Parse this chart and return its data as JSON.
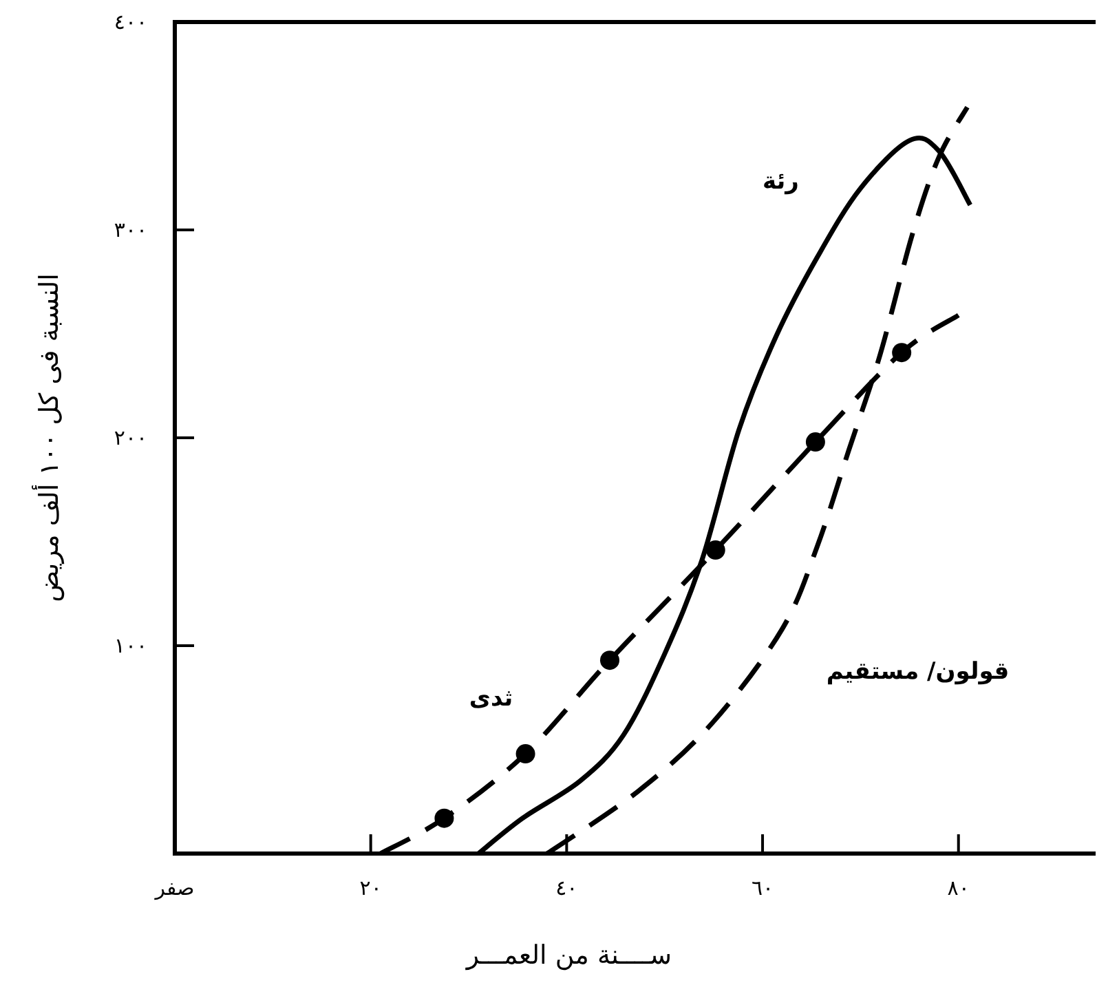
{
  "chart_data": {
    "type": "line",
    "xlabel": "ســــنة من العمـــر",
    "ylabel": "النسبة فى كل ١٠٠ ألف مريض",
    "xlim": [
      0,
      94
    ],
    "ylim": [
      0,
      400
    ],
    "xticks": [
      {
        "value": 0,
        "label": "صفر"
      },
      {
        "value": 20,
        "label": "٢٠"
      },
      {
        "value": 40,
        "label": "٤٠"
      },
      {
        "value": 60,
        "label": "٦٠"
      },
      {
        "value": 80,
        "label": "٨٠"
      }
    ],
    "yticks": [
      {
        "value": 100,
        "label": "١٠٠"
      },
      {
        "value": 200,
        "label": "٢٠٠"
      },
      {
        "value": 300,
        "label": "٣٠٠"
      },
      {
        "value": 400,
        "label": "٤٠٠"
      }
    ],
    "series": [
      {
        "name": "رئة",
        "color": "#000000",
        "line_style": "solid",
        "marker": "none",
        "x": [
          31,
          35.5,
          41.4,
          45.8,
          50,
          53.8,
          57.6,
          61.4,
          65.6,
          70,
          75,
          78,
          81.2
        ],
        "values": [
          0,
          17,
          35,
          57,
          96,
          141,
          204,
          249,
          287,
          320,
          343,
          338,
          312
        ]
      },
      {
        "name": "ثدى",
        "color": "#000000",
        "line_style": "dashed",
        "marker": "none",
        "x": [
          21,
          27.5,
          35.8,
          44.4,
          55.2,
          65.4,
          74.2,
          80
        ],
        "values": [
          0,
          17,
          48,
          93,
          146,
          198,
          241,
          259
        ]
      },
      {
        "type": "scatter",
        "color": "#000000",
        "marker": "circle",
        "x": [
          27.5,
          35.8,
          44.4,
          55.2,
          65.4,
          74.2
        ],
        "values": [
          17,
          48,
          93,
          146,
          198,
          241
        ]
      },
      {
        "name": "قولون/ مستقيم",
        "color": "#000000",
        "line_style": "dashed",
        "marker": "none",
        "x": [
          38,
          47.3,
          54.9,
          62,
          65.6,
          68.8,
          72,
          75.3,
          78,
          80.9
        ],
        "values": [
          0,
          30,
          63,
          108,
          148,
          194,
          240,
          298,
          335,
          359
        ]
      }
    ]
  }
}
